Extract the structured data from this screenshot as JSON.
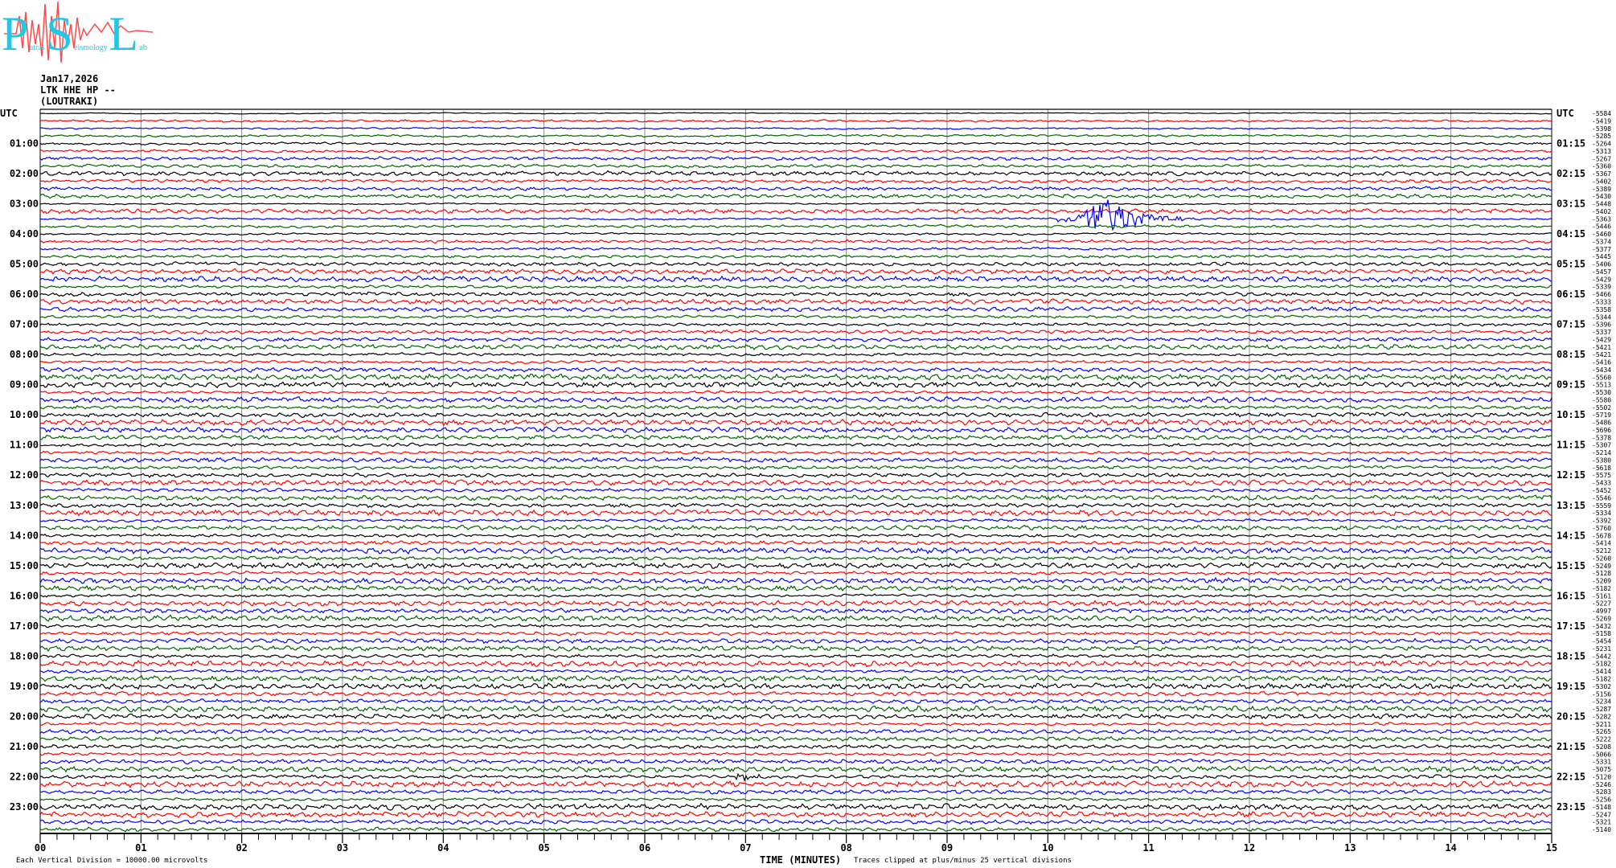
{
  "logo": {
    "letters": [
      "P",
      "S",
      "L"
    ],
    "words": [
      "atras",
      "eismology",
      "ab"
    ],
    "colors": {
      "letters": "#1ec8e8",
      "wave": "#ff4a4a"
    }
  },
  "header": {
    "date": "Jan17,2026",
    "station": "LTK HHE HP --",
    "location": "(LOUTRAKI)"
  },
  "chart_data": {
    "type": "line",
    "title": "",
    "left_axis_title": "UTC",
    "right_axis_title": "UTC",
    "xlabel": "TIME (MINUTES)",
    "xlim": [
      0,
      15
    ],
    "x_ticks": [
      "00",
      "01",
      "02",
      "03",
      "04",
      "05",
      "06",
      "07",
      "08",
      "09",
      "10",
      "11",
      "12",
      "13",
      "14",
      "15"
    ],
    "grid": "vertical lines every minute",
    "trace_colors": [
      "#000000",
      "#ff0000",
      "#0000ff",
      "#006400"
    ],
    "rows_per_hour": 4,
    "left_labels": [
      "",
      "01:00",
      "02:00",
      "03:00",
      "04:00",
      "05:00",
      "06:00",
      "07:00",
      "08:00",
      "09:00",
      "10:00",
      "11:00",
      "12:00",
      "13:00",
      "14:00",
      "15:00",
      "16:00",
      "17:00",
      "18:00",
      "19:00",
      "20:00",
      "21:00",
      "22:00",
      "23:00"
    ],
    "right_labels": [
      "",
      "01:15",
      "02:15",
      "03:15",
      "04:15",
      "05:15",
      "06:15",
      "07:15",
      "08:15",
      "09:15",
      "10:15",
      "11:15",
      "12:15",
      "13:15",
      "14:15",
      "15:15",
      "16:15",
      "17:15",
      "18:15",
      "19:15",
      "20:15",
      "21:15",
      "22:15",
      "23:15"
    ],
    "row_offsets": [
      "-5584",
      "-5419",
      "-5398",
      "-5285",
      "-5264",
      "-5313",
      "-5267",
      "-5360",
      "-5367",
      "-5402",
      "-5389",
      "-5430",
      "-5448",
      "-5402",
      "-5363",
      "-5446",
      "-5460",
      "-5374",
      "-5377",
      "-5445",
      "-5406",
      "-5457",
      "-5429",
      "-5339",
      "-5466",
      "-5333",
      "-5358",
      "-5344",
      "-5396",
      "-5337",
      "-5429",
      "-5421",
      "-5421",
      "-5416",
      "-5434",
      "-5560",
      "-5513",
      "-5530",
      "-5580",
      "-5502",
      "-5719",
      "-5486",
      "-5696",
      "-5378",
      "-5307",
      "-5214",
      "-5380",
      "-5618",
      "-5575",
      "-5433",
      "-5452",
      "-5546",
      "-5559",
      "-5334",
      "-5392",
      "-5760",
      "-5678",
      "-5414",
      "-5212",
      "-5260",
      "-5249",
      "-5128",
      "-5209",
      "-5182",
      "-5161",
      "-5227",
      "-4997",
      "-5269",
      "-5432",
      "-5158",
      "-5454",
      "-5231",
      "-5442",
      "-5182",
      "-5414",
      "-5182",
      "-5302",
      "-5156",
      "-5234",
      "-5287",
      "-5282",
      "-5211",
      "-5265",
      "-5222",
      "-5208",
      "-5066",
      "-5331",
      "-5075",
      "-5120",
      "-5246",
      "-5283",
      "-5256",
      "-5148",
      "-5247",
      "-5321",
      "-5140"
    ],
    "events": [
      {
        "row_start": "03:30",
        "start_minute": 10.1,
        "peak_minute": 10.55,
        "end_minute": 11.7,
        "clipped_peak": true
      },
      {
        "row_start": "22:00",
        "start_minute": 6.85,
        "peak_minute": 6.95,
        "end_minute": 7.5,
        "clipped_peak": false
      }
    ]
  },
  "footer": {
    "scale_note": "Each Vertical Division = 10000.00 microvolts",
    "clip_note": "Traces clipped at plus/minus 25 vertical divisions"
  }
}
